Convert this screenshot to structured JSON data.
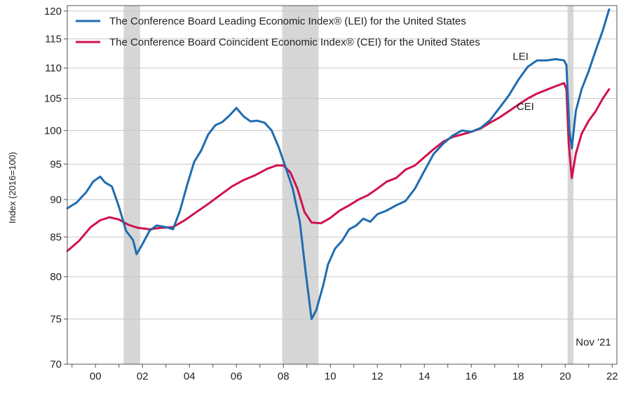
{
  "chart_data": {
    "type": "line",
    "ylabel": "Index (2016=100)",
    "yscale": "log",
    "ylim": [
      70,
      121
    ],
    "y_ticks": [
      70,
      75,
      80,
      85,
      90,
      95,
      100,
      105,
      110,
      115,
      120
    ],
    "xlim": [
      1998.8,
      2022.2
    ],
    "x_ticks": [
      {
        "x": 2000,
        "label": "00"
      },
      {
        "x": 2002,
        "label": "02"
      },
      {
        "x": 2004,
        "label": "04"
      },
      {
        "x": 2006,
        "label": "06"
      },
      {
        "x": 2008,
        "label": "08"
      },
      {
        "x": 2010,
        "label": "10"
      },
      {
        "x": 2012,
        "label": "12"
      },
      {
        "x": 2014,
        "label": "14"
      },
      {
        "x": 2016,
        "label": "16"
      },
      {
        "x": 2018,
        "label": "18"
      },
      {
        "x": 2020,
        "label": "20"
      },
      {
        "x": 2022,
        "label": "22"
      }
    ],
    "recessions": [
      [
        2001.2,
        2001.9
      ],
      [
        2007.95,
        2009.5
      ],
      [
        2020.1,
        2020.35
      ]
    ],
    "grid": "horizontal",
    "legend_position": "top-left",
    "annotations": [
      {
        "text": "LEI",
        "x": 2018.1,
        "y": 111.4
      },
      {
        "text": "CEI",
        "x": 2018.3,
        "y": 103.2
      },
      {
        "text": "Nov '21",
        "x": 2021.2,
        "y": 72.0
      }
    ],
    "series": [
      {
        "name": "The Conference Board Leading Economic Index® (LEI) for the United States",
        "color": "#1f6cb0",
        "points": [
          [
            1998.8,
            88.8
          ],
          [
            1999.2,
            89.6
          ],
          [
            1999.6,
            91.0
          ],
          [
            1999.9,
            92.5
          ],
          [
            2000.2,
            93.2
          ],
          [
            2000.4,
            92.4
          ],
          [
            2000.7,
            91.8
          ],
          [
            2001.0,
            89.0
          ],
          [
            2001.3,
            85.8
          ],
          [
            2001.6,
            84.6
          ],
          [
            2001.75,
            82.8
          ],
          [
            2001.95,
            83.8
          ],
          [
            2002.3,
            85.8
          ],
          [
            2002.6,
            86.5
          ],
          [
            2003.0,
            86.3
          ],
          [
            2003.3,
            86.0
          ],
          [
            2003.6,
            88.5
          ],
          [
            2003.9,
            92.0
          ],
          [
            2004.2,
            95.3
          ],
          [
            2004.5,
            97.0
          ],
          [
            2004.8,
            99.4
          ],
          [
            2005.1,
            100.8
          ],
          [
            2005.4,
            101.3
          ],
          [
            2005.7,
            102.3
          ],
          [
            2006.0,
            103.5
          ],
          [
            2006.3,
            102.2
          ],
          [
            2006.6,
            101.4
          ],
          [
            2006.9,
            101.5
          ],
          [
            2007.2,
            101.2
          ],
          [
            2007.5,
            100.0
          ],
          [
            2007.8,
            97.5
          ],
          [
            2008.1,
            94.5
          ],
          [
            2008.4,
            91.5
          ],
          [
            2008.7,
            87.0
          ],
          [
            2008.95,
            80.5
          ],
          [
            2009.2,
            75.0
          ],
          [
            2009.4,
            76.0
          ],
          [
            2009.7,
            79.0
          ],
          [
            2009.9,
            81.5
          ],
          [
            2010.2,
            83.5
          ],
          [
            2010.5,
            84.5
          ],
          [
            2010.8,
            86.0
          ],
          [
            2011.1,
            86.5
          ],
          [
            2011.4,
            87.4
          ],
          [
            2011.7,
            87.0
          ],
          [
            2012.0,
            88.0
          ],
          [
            2012.4,
            88.5
          ],
          [
            2012.8,
            89.2
          ],
          [
            2013.2,
            89.8
          ],
          [
            2013.6,
            91.5
          ],
          [
            2014.0,
            94.0
          ],
          [
            2014.4,
            96.5
          ],
          [
            2014.8,
            98.0
          ],
          [
            2015.2,
            99.2
          ],
          [
            2015.6,
            100.0
          ],
          [
            2016.0,
            99.8
          ],
          [
            2016.4,
            100.4
          ],
          [
            2016.8,
            101.6
          ],
          [
            2017.2,
            103.5
          ],
          [
            2017.6,
            105.5
          ],
          [
            2018.0,
            108.0
          ],
          [
            2018.4,
            110.2
          ],
          [
            2018.8,
            111.3
          ],
          [
            2019.2,
            111.3
          ],
          [
            2019.6,
            111.5
          ],
          [
            2019.95,
            111.3
          ],
          [
            2020.05,
            110.5
          ],
          [
            2020.18,
            100.0
          ],
          [
            2020.28,
            97.3
          ],
          [
            2020.45,
            103.0
          ],
          [
            2020.7,
            106.5
          ],
          [
            2021.0,
            109.5
          ],
          [
            2021.3,
            113.0
          ],
          [
            2021.6,
            116.5
          ],
          [
            2021.87,
            120.3
          ]
        ]
      },
      {
        "name": "The Conference Board Coincident Economic Index® (CEI) for the United States",
        "color": "#d1124d",
        "points": [
          [
            1998.8,
            83.2
          ],
          [
            1999.3,
            84.5
          ],
          [
            1999.8,
            86.3
          ],
          [
            2000.2,
            87.2
          ],
          [
            2000.6,
            87.6
          ],
          [
            2001.0,
            87.3
          ],
          [
            2001.4,
            86.6
          ],
          [
            2001.8,
            86.2
          ],
          [
            2002.3,
            86.0
          ],
          [
            2002.8,
            86.2
          ],
          [
            2003.3,
            86.3
          ],
          [
            2003.8,
            87.2
          ],
          [
            2004.3,
            88.3
          ],
          [
            2004.8,
            89.4
          ],
          [
            2005.3,
            90.6
          ],
          [
            2005.8,
            91.8
          ],
          [
            2006.3,
            92.7
          ],
          [
            2006.8,
            93.4
          ],
          [
            2007.3,
            94.3
          ],
          [
            2007.7,
            94.8
          ],
          [
            2008.0,
            94.8
          ],
          [
            2008.3,
            93.8
          ],
          [
            2008.6,
            91.5
          ],
          [
            2008.9,
            88.3
          ],
          [
            2009.2,
            86.9
          ],
          [
            2009.6,
            86.8
          ],
          [
            2010.0,
            87.5
          ],
          [
            2010.4,
            88.5
          ],
          [
            2010.8,
            89.2
          ],
          [
            2011.2,
            90.0
          ],
          [
            2011.6,
            90.6
          ],
          [
            2012.0,
            91.5
          ],
          [
            2012.4,
            92.5
          ],
          [
            2012.8,
            93.0
          ],
          [
            2013.2,
            94.2
          ],
          [
            2013.6,
            94.8
          ],
          [
            2014.0,
            96.0
          ],
          [
            2014.4,
            97.2
          ],
          [
            2014.8,
            98.3
          ],
          [
            2015.2,
            99.0
          ],
          [
            2015.6,
            99.4
          ],
          [
            2016.0,
            99.8
          ],
          [
            2016.4,
            100.3
          ],
          [
            2016.8,
            101.2
          ],
          [
            2017.2,
            102.0
          ],
          [
            2017.6,
            103.0
          ],
          [
            2018.0,
            104.0
          ],
          [
            2018.4,
            105.0
          ],
          [
            2018.8,
            105.8
          ],
          [
            2019.2,
            106.4
          ],
          [
            2019.6,
            107.0
          ],
          [
            2019.95,
            107.5
          ],
          [
            2020.05,
            106.5
          ],
          [
            2020.15,
            98.0
          ],
          [
            2020.28,
            93.0
          ],
          [
            2020.45,
            96.5
          ],
          [
            2020.7,
            99.5
          ],
          [
            2021.0,
            101.5
          ],
          [
            2021.3,
            103.0
          ],
          [
            2021.6,
            105.0
          ],
          [
            2021.87,
            106.5
          ]
        ]
      }
    ]
  }
}
